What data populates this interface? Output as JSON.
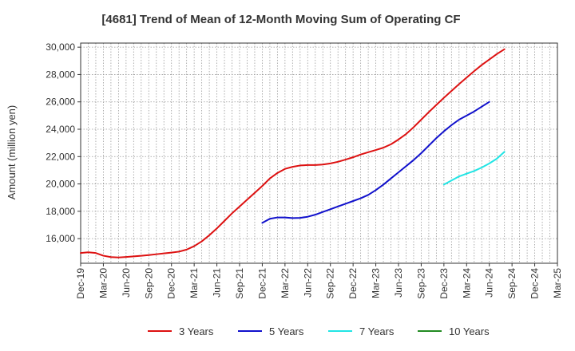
{
  "chart_data": {
    "type": "line",
    "title": "[4681]  Trend of Mean of 12-Month Moving Sum of Operating CF",
    "xlabel": "",
    "ylabel": "Amount (million yen)",
    "ylim": [
      14200,
      30300
    ],
    "yticks": [
      16000,
      18000,
      20000,
      22000,
      24000,
      26000,
      28000,
      30000
    ],
    "ytick_labels": [
      "16,000",
      "18,000",
      "20,000",
      "22,000",
      "24,000",
      "26,000",
      "28,000",
      "30,000"
    ],
    "xticks": [
      "Dec-19",
      "Mar-20",
      "Jun-20",
      "Sep-20",
      "Dec-20",
      "Mar-21",
      "Jun-21",
      "Sep-21",
      "Dec-21",
      "Mar-22",
      "Jun-22",
      "Sep-22",
      "Dec-22",
      "Mar-23",
      "Jun-23",
      "Sep-23",
      "Dec-23",
      "Mar-24",
      "Jun-24",
      "Sep-24",
      "Dec-24",
      "Mar-25"
    ],
    "grid": true,
    "legend_position": "bottom",
    "series": [
      {
        "name": "3 Years",
        "color": "#dd1111",
        "start_index": 0,
        "values": [
          14950,
          15000,
          14950,
          14750,
          14650,
          14620,
          14660,
          14700,
          14750,
          14800,
          14860,
          14920,
          14980,
          15050,
          15200,
          15450,
          15800,
          16250,
          16750,
          17300,
          17850,
          18350,
          18850,
          19350,
          19850,
          20400,
          20800,
          21100,
          21250,
          21350,
          21380,
          21380,
          21420,
          21500,
          21620,
          21780,
          21950,
          22150,
          22320,
          22480,
          22650,
          22900,
          23250,
          23650,
          24150,
          24700,
          25250,
          25780,
          26300,
          26800,
          27300,
          27780,
          28250,
          28700,
          29100,
          29500,
          29850
        ]
      },
      {
        "name": "5 Years",
        "color": "#1111cc",
        "start_index": 24,
        "values": [
          17150,
          17450,
          17550,
          17550,
          17500,
          17520,
          17600,
          17750,
          17950,
          18150,
          18350,
          18550,
          18750,
          18950,
          19200,
          19550,
          19950,
          20400,
          20850,
          21300,
          21750,
          22250,
          22800,
          23350,
          23850,
          24300,
          24700,
          25000,
          25300,
          25650,
          26000
        ]
      },
      {
        "name": "7 Years",
        "color": "#22e5e5",
        "start_index": 48,
        "values": [
          19950,
          20250,
          20550,
          20750,
          20950,
          21200,
          21500,
          21850,
          22350
        ]
      },
      {
        "name": "10 Years",
        "color": "#228b22",
        "start_index": 0,
        "values": []
      }
    ]
  }
}
